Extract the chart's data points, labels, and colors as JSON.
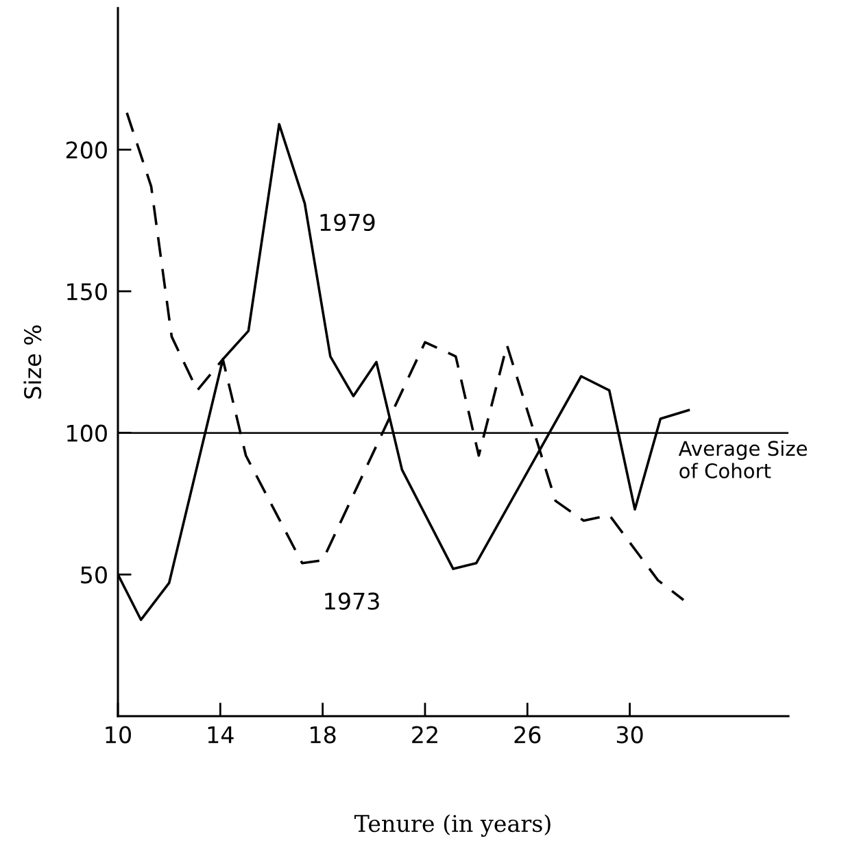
{
  "chart_data": {
    "type": "line",
    "xlabel": "Tenure (in years)",
    "ylabel": "Size %",
    "xlim": [
      10,
      36.2
    ],
    "ylim": [
      0,
      250
    ],
    "xticks": [
      10,
      14,
      18,
      22,
      26,
      30
    ],
    "yticks": [
      50,
      100,
      150,
      200
    ],
    "grid": false,
    "legend": false,
    "marker": "none",
    "series": [
      {
        "name": "1979",
        "color": "#000000",
        "line_style": "solid",
        "x": [
          10,
          10.9,
          12,
          14.1,
          15.1,
          16.3,
          17.3,
          18.3,
          19.2,
          20.1,
          21.1,
          23.1,
          24,
          28.1,
          29.2,
          30.2,
          31.2,
          32.3
        ],
        "values": [
          50,
          34,
          47,
          126,
          136,
          209,
          181,
          127,
          113,
          125,
          87,
          52,
          54,
          120,
          115,
          73,
          105,
          108
        ]
      },
      {
        "name": "1973",
        "color": "#000000",
        "line_style": "dashed",
        "x": [
          10.35,
          11.3,
          12.1,
          13.1,
          14.1,
          15,
          17.2,
          18,
          22,
          23.2,
          24.1,
          25.2,
          27.1,
          28.2,
          29.2,
          31.1,
          32.1
        ],
        "values": [
          213,
          187,
          134,
          115,
          126,
          92,
          54,
          55,
          132,
          127,
          92,
          131,
          76,
          69,
          71,
          48,
          41
        ]
      }
    ],
    "ref_lines": [
      {
        "axis": "y",
        "value": 100,
        "label": "Average Size\nof Cohort",
        "color": "#000000"
      }
    ]
  }
}
